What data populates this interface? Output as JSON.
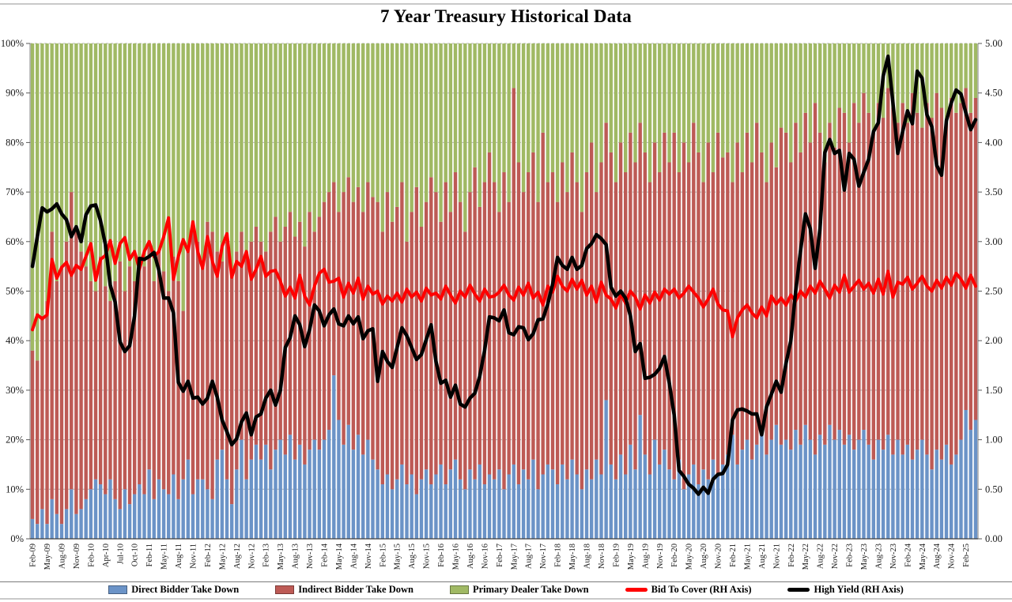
{
  "page": {
    "title": "7 Year Treasury Historical Data"
  },
  "colors": {
    "direct_bar": "#6b93c7",
    "indirect_bar": "#bd5a55",
    "dealer_bar": "#a0b964",
    "bid_to_cover_line": "#ff0000",
    "high_yield_line": "#000000",
    "gridline": "#b3b3b3",
    "axis_line": "#808080",
    "axis_text": "#1a1a1a"
  },
  "left_axis": {
    "ticks": [
      "0%",
      "10%",
      "20%",
      "30%",
      "40%",
      "50%",
      "60%",
      "70%",
      "80%",
      "90%",
      "100%"
    ],
    "min": 0,
    "max": 100
  },
  "right_axis": {
    "ticks": [
      "0.00",
      "0.50",
      "1.00",
      "1.50",
      "2.00",
      "2.50",
      "3.00",
      "3.50",
      "4.00",
      "4.50",
      "5.00"
    ],
    "min": 0,
    "max": 5
  },
  "legend": {
    "items": [
      {
        "label": "Direct Bidder Take Down",
        "swatch": "bar",
        "color_key": "direct_bar"
      },
      {
        "label": "Indirect Bidder Take Down",
        "swatch": "bar",
        "color_key": "indirect_bar"
      },
      {
        "label": "Primary Dealer Take Down",
        "swatch": "bar",
        "color_key": "dealer_bar"
      },
      {
        "label": "Bid To Cover (RH Axis)",
        "swatch": "line",
        "color_key": "bid_to_cover_line"
      },
      {
        "label": "High Yield (RH Axis)",
        "swatch": "line",
        "color_key": "high_yield_line"
      }
    ]
  },
  "chart_data": {
    "type": "bar",
    "subtype": "stacked-percent-bars-with-overlaid-lines",
    "title": "7 Year Treasury Historical Data",
    "xlabel": "",
    "ylabel_left": "",
    "ylabel_right": "",
    "ylim_left": [
      0,
      100
    ],
    "ylim_right": [
      0,
      5
    ],
    "grid": true,
    "legend_position": "bottom",
    "x_is_monthly_auctions": true,
    "x_tick_every": 3,
    "x_tick_labels": [
      "Feb-09",
      "May-09",
      "Aug-09",
      "Nov-09",
      "Feb-10",
      "Apr-10",
      "Jul-10",
      "Oct-10",
      "Feb-11",
      "May-11",
      "Aug-11",
      "Nov-11",
      "Feb-12",
      "May-12",
      "Aug-12",
      "Nov-12",
      "Feb-13",
      "May-13",
      "Aug-13",
      "Nov-13",
      "Feb-14",
      "May-14",
      "Aug-14",
      "Nov-14",
      "Feb-15",
      "May-15",
      "Aug-15",
      "Nov-15",
      "Feb-16",
      "May-16",
      "Aug-16",
      "Nov-16",
      "Feb-17",
      "May-17",
      "Aug-17",
      "Nov-17",
      "Feb-18",
      "May-18",
      "Aug-18",
      "Nov-18",
      "Feb-19",
      "May-19",
      "Aug-19",
      "Nov-19",
      "Feb-20",
      "May-20",
      "Aug-20",
      "Nov-20",
      "Feb-21",
      "May-21",
      "Aug-21",
      "Nov-21",
      "Feb-22",
      "May-22",
      "Aug-22",
      "Nov-22",
      "Feb-23",
      "May-23",
      "Aug-23",
      "Nov-23",
      "Feb-24",
      "May-24",
      "Aug-24",
      "Nov-24",
      "Feb-25"
    ],
    "stacked_to_100": true,
    "series": [
      {
        "name": "Direct Bidder Take Down",
        "type": "bar",
        "axis": "left",
        "unit": "%",
        "values": [
          4,
          3,
          6,
          3,
          8,
          5,
          3,
          6,
          10,
          5,
          6,
          8,
          10,
          12,
          11,
          9,
          12,
          8,
          6,
          10,
          7,
          9,
          11,
          9,
          14,
          8,
          12,
          10,
          9,
          13,
          8,
          12,
          16,
          9,
          12,
          12,
          10,
          8,
          16,
          18,
          12,
          7,
          14,
          20,
          12,
          16,
          19,
          16,
          19,
          14,
          18,
          20,
          17,
          21,
          16,
          19,
          15,
          18,
          20,
          18,
          20,
          22,
          33,
          24,
          19,
          23,
          18,
          21,
          17,
          20,
          16,
          14,
          11,
          13,
          10,
          12,
          15,
          11,
          13,
          9,
          12,
          14,
          11,
          13,
          15,
          11,
          14,
          16,
          12,
          10,
          14,
          12,
          15,
          11,
          13,
          12,
          14,
          10,
          13,
          15,
          11,
          14,
          12,
          16,
          10,
          13,
          15,
          14,
          11,
          15,
          12,
          16,
          13,
          10,
          14,
          12,
          16,
          13,
          28,
          15,
          12,
          17,
          13,
          19,
          14,
          25,
          17,
          13,
          20,
          15,
          18,
          14,
          12,
          16,
          10,
          13,
          15,
          11,
          14,
          12,
          16,
          13,
          15,
          17,
          21,
          15,
          18,
          20,
          16,
          19,
          22,
          17,
          20,
          23,
          19,
          20,
          18,
          22,
          19,
          23,
          20,
          17,
          21,
          19,
          23,
          20,
          22,
          19,
          21,
          18,
          20,
          22,
          19,
          16,
          20,
          18,
          21,
          17,
          20,
          17,
          19,
          16,
          18,
          20,
          17,
          14,
          18,
          16,
          19,
          15,
          17,
          20,
          26,
          22,
          24
        ]
      },
      {
        "name": "Indirect Bidder Take Down",
        "type": "bar",
        "axis": "left",
        "unit": "%",
        "values": [
          34,
          33,
          39,
          45,
          54,
          47,
          52,
          54,
          60,
          57,
          52,
          47,
          42,
          38,
          46,
          42,
          36,
          44,
          50,
          40,
          48,
          43,
          46,
          46,
          46,
          44,
          46,
          44,
          41,
          44,
          44,
          34,
          42,
          55,
          48,
          43,
          54,
          54,
          42,
          38,
          48,
          47,
          44,
          42,
          45,
          44,
          44,
          44,
          39,
          48,
          47,
          40,
          46,
          45,
          45,
          45,
          44,
          48,
          42,
          47,
          48,
          48,
          39,
          42,
          51,
          50,
          50,
          50,
          49,
          52,
          53,
          54,
          51,
          57,
          54,
          55,
          57,
          49,
          53,
          62,
          51,
          54,
          62,
          57,
          49,
          61,
          52,
          58,
          56,
          52,
          56,
          63,
          52,
          61,
          65,
          60,
          52,
          64,
          55,
          76,
          65,
          56,
          62,
          62,
          58,
          69,
          57,
          60,
          57,
          61,
          58,
          62,
          59,
          56,
          60,
          68,
          54,
          63,
          56,
          63,
          60,
          63,
          61,
          63,
          62,
          59,
          61,
          59,
          60,
          59,
          64,
          62,
          70,
          58,
          70,
          63,
          69,
          67,
          58,
          68,
          58,
          69,
          62,
          61,
          51,
          65,
          56,
          62,
          60,
          65,
          56,
          55,
          60,
          52,
          64,
          62,
          58,
          62,
          59,
          63,
          60,
          71,
          61,
          57,
          61,
          59,
          65,
          67,
          59,
          70,
          64,
          68,
          67,
          66,
          68,
          67,
          70,
          70,
          64,
          71,
          65,
          74,
          68,
          63,
          71,
          71,
          72,
          71,
          65,
          74,
          69,
          68,
          65,
          64,
          65
        ]
      },
      {
        "name": "Primary Dealer Take Down",
        "type": "bar",
        "axis": "left",
        "unit": "%",
        "values_rule": "100 - direct - indirect (stack remainder to 100%)"
      },
      {
        "name": "Bid To Cover (RH Axis)",
        "type": "line",
        "axis": "right",
        "values": [
          2.11,
          2.26,
          2.22,
          2.26,
          2.82,
          2.63,
          2.74,
          2.79,
          2.66,
          2.76,
          2.72,
          2.85,
          2.98,
          2.61,
          2.82,
          2.86,
          3.01,
          2.78,
          2.98,
          3.04,
          2.82,
          2.9,
          2.72,
          2.9,
          3.0,
          2.85,
          2.9,
          3.05,
          3.24,
          2.62,
          2.85,
          3.02,
          2.9,
          3.2,
          2.9,
          2.73,
          3.05,
          2.8,
          2.65,
          2.95,
          3.08,
          2.64,
          2.8,
          2.75,
          2.9,
          2.62,
          2.72,
          2.85,
          2.65,
          2.7,
          2.71,
          2.6,
          2.45,
          2.54,
          2.43,
          2.66,
          2.45,
          2.36,
          2.55,
          2.68,
          2.72,
          2.59,
          2.6,
          2.63,
          2.44,
          2.58,
          2.48,
          2.63,
          2.42,
          2.55,
          2.47,
          2.5,
          2.37,
          2.45,
          2.4,
          2.48,
          2.39,
          2.52,
          2.44,
          2.49,
          2.4,
          2.53,
          2.46,
          2.48,
          2.42,
          2.55,
          2.46,
          2.38,
          2.5,
          2.44,
          2.56,
          2.47,
          2.4,
          2.52,
          2.44,
          2.45,
          2.49,
          2.56,
          2.46,
          2.41,
          2.54,
          2.46,
          2.58,
          2.43,
          2.49,
          2.36,
          2.55,
          2.49,
          2.65,
          2.55,
          2.5,
          2.62,
          2.52,
          2.61,
          2.46,
          2.55,
          2.39,
          2.59,
          2.46,
          2.42,
          2.33,
          2.47,
          2.38,
          2.5,
          2.44,
          2.32,
          2.46,
          2.38,
          2.49,
          2.41,
          2.52,
          2.47,
          2.52,
          2.43,
          2.48,
          2.55,
          2.49,
          2.43,
          2.34,
          2.42,
          2.52,
          2.37,
          2.31,
          2.3,
          2.04,
          2.23,
          2.31,
          2.36,
          2.28,
          2.23,
          2.34,
          2.25,
          2.45,
          2.37,
          2.43,
          2.36,
          2.46,
          2.4,
          2.5,
          2.44,
          2.55,
          2.48,
          2.6,
          2.52,
          2.43,
          2.56,
          2.49,
          2.66,
          2.49,
          2.55,
          2.61,
          2.52,
          2.58,
          2.48,
          2.62,
          2.47,
          2.7,
          2.44,
          2.59,
          2.57,
          2.64,
          2.52,
          2.58,
          2.65,
          2.55,
          2.5,
          2.61,
          2.53,
          2.64,
          2.56,
          2.68,
          2.62,
          2.53,
          2.66,
          2.55
        ]
      },
      {
        "name": "High Yield (RH Axis)",
        "type": "line",
        "axis": "right",
        "unit": "%",
        "values": [
          2.75,
          3.05,
          3.34,
          3.3,
          3.33,
          3.38,
          3.28,
          3.22,
          3.05,
          3.15,
          3.0,
          3.27,
          3.36,
          3.37,
          3.21,
          2.97,
          2.56,
          2.39,
          1.99,
          1.89,
          1.95,
          2.25,
          2.83,
          2.82,
          2.85,
          2.89,
          2.71,
          2.43,
          2.43,
          2.28,
          1.58,
          1.49,
          1.59,
          1.42,
          1.43,
          1.36,
          1.42,
          1.59,
          1.43,
          1.2,
          1.08,
          0.95,
          1.01,
          1.18,
          1.27,
          1.05,
          1.23,
          1.26,
          1.42,
          1.5,
          1.35,
          1.5,
          1.93,
          2.03,
          2.25,
          2.16,
          1.94,
          2.11,
          2.36,
          2.3,
          2.15,
          2.26,
          2.32,
          2.17,
          2.15,
          2.25,
          2.17,
          2.24,
          2.02,
          2.1,
          2.12,
          1.59,
          1.89,
          1.79,
          1.73,
          1.93,
          2.13,
          2.05,
          1.93,
          1.81,
          1.86,
          2.01,
          2.16,
          1.79,
          1.57,
          1.6,
          1.43,
          1.55,
          1.36,
          1.33,
          1.42,
          1.47,
          1.64,
          1.9,
          2.24,
          2.23,
          2.2,
          2.31,
          2.08,
          2.06,
          2.14,
          2.13,
          2.01,
          2.07,
          2.21,
          2.22,
          2.37,
          2.57,
          2.84,
          2.76,
          2.72,
          2.84,
          2.72,
          2.76,
          2.93,
          2.98,
          3.07,
          3.03,
          2.97,
          2.54,
          2.45,
          2.5,
          2.43,
          2.25,
          1.89,
          1.97,
          1.62,
          1.63,
          1.66,
          1.72,
          1.84,
          1.57,
          1.25,
          0.69,
          0.63,
          0.55,
          0.51,
          0.45,
          0.52,
          0.46,
          0.6,
          0.65,
          0.66,
          0.75,
          1.2,
          1.3,
          1.31,
          1.29,
          1.26,
          1.26,
          1.05,
          1.33,
          1.46,
          1.59,
          1.48,
          1.77,
          2.0,
          2.5,
          2.91,
          3.28,
          3.13,
          2.73,
          3.13,
          3.9,
          4.03,
          3.89,
          3.92,
          3.52,
          3.89,
          3.83,
          3.56,
          3.7,
          3.83,
          4.11,
          4.2,
          4.67,
          4.87,
          4.4,
          3.89,
          4.11,
          4.32,
          4.19,
          4.72,
          4.65,
          4.28,
          4.16,
          3.77,
          3.67,
          4.22,
          4.4,
          4.53,
          4.49,
          4.3,
          4.13,
          4.23
        ]
      }
    ]
  }
}
